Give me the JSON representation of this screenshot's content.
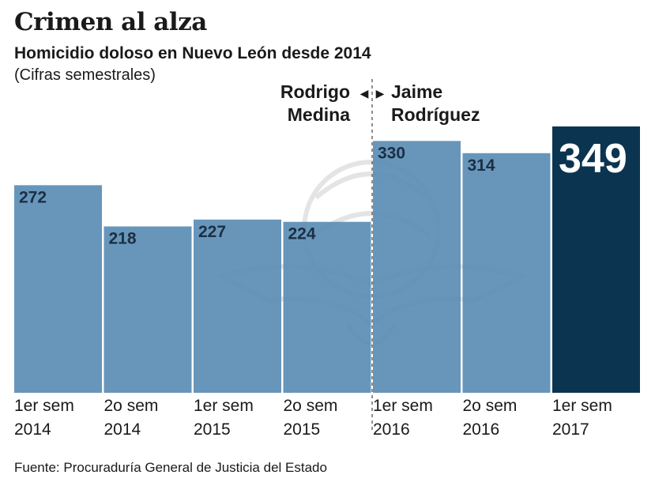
{
  "chart_data": {
    "type": "bar",
    "title": "Crimen al alza",
    "subtitle": "Homicidio doloso en Nuevo León desde 2014",
    "note": "(Cifras semestrales)",
    "categories": [
      [
        "1er sem",
        "2014"
      ],
      [
        "2o sem",
        "2014"
      ],
      [
        "1er sem",
        "2015"
      ],
      [
        "2o sem",
        "2015"
      ],
      [
        "1er sem",
        "2016"
      ],
      [
        "2o sem",
        "2016"
      ],
      [
        "1er sem",
        "2017"
      ]
    ],
    "values": [
      272,
      218,
      227,
      224,
      330,
      314,
      349
    ],
    "data_labels": [
      "272",
      "218",
      "227",
      "224",
      "330",
      "314",
      "349"
    ],
    "highlight_index": 6,
    "ylim": [
      0,
      349
    ],
    "periods": [
      {
        "lines": [
          "Rodrigo",
          "Medina"
        ],
        "arrow": "◀",
        "side": "left"
      },
      {
        "lines": [
          "Jaime",
          "Rodríguez"
        ],
        "arrow": "▶",
        "side": "right"
      }
    ],
    "divider_after_index": 3,
    "colors": {
      "bar": "#5b8db5",
      "highlight": "#0b3450",
      "label": "#1b2f44",
      "watermark": "#c9c9c9"
    },
    "source": "Fuente: Procuraduría General de Justicia del Estado"
  }
}
